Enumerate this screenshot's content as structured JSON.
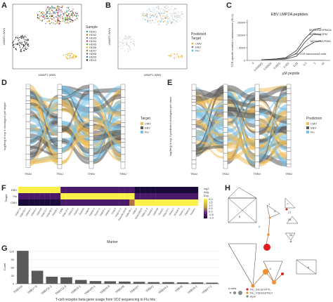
{
  "labels": [
    "A",
    "B",
    "C",
    "D",
    "E",
    "F",
    "G",
    "H"
  ],
  "panelA": {
    "xlabel": "UMAP1-WNN",
    "ylabel": "UMAP2-WNN",
    "legend_title": "Sample",
    "samples": [
      "HD01",
      "HD02",
      "HD03",
      "HD04",
      "HD05",
      "HD06",
      "HD07",
      "HD08",
      "HD09",
      "HD10"
    ],
    "sample_colors": [
      "#1b9e77",
      "#d95f02",
      "#7570b3",
      "#e7298a",
      "#66a61e",
      "#e6ab02",
      "#a6761d",
      "#666666",
      "#3366cc",
      "#222222"
    ]
  },
  "panelB": {
    "xlabel": "UMAP1-WNN",
    "ylabel": "UMAP2-WNN",
    "legend_title": "Predicted Target",
    "targets": [
      "CMV",
      "EBV",
      "Flu"
    ],
    "target_colors": [
      "#e8b13a",
      "#888888",
      "#56b4e9"
    ]
  },
  "panelC": {
    "title": "EBV LMP2A peptides",
    "ylabel": "TCR-specific relative Luminescence (RLU)",
    "xlabel": "μM peptide",
    "xticks": [
      "0",
      "0.000001",
      "0.00001",
      "0.0001",
      "0.001",
      "0.01",
      "0.1",
      "1",
      "10"
    ],
    "yticks": [
      "0",
      "5000",
      "10000",
      "15000"
    ],
    "series_labels": [
      "MGSLEMVPMGA",
      "MGSLEMVPM",
      "MCSLEMVPMG"
    ],
    "note": "No TCR transduced cells"
  },
  "panelD": {
    "ylabel": "log(freq) in top 3 clonotypes per target",
    "axes": [
      "TRAV",
      "TRAJ",
      "TRBV",
      "TRBJ"
    ],
    "legend_title": "Target",
    "legend": [
      "CMV",
      "EBV",
      "Flu"
    ],
    "colors": [
      "#f0be5a",
      "#5a5a5a",
      "#78c0e6"
    ]
  },
  "panelE": {
    "ylabel": "log(freq) in top 3 predicted clonotypes per class",
    "axes": [
      "TRAV",
      "TRAJ",
      "TRBV",
      "TRBJ"
    ],
    "legend_title": "Prediction",
    "legend": [
      "CMV",
      "EBV",
      "Flu"
    ],
    "colors": [
      "#f0be5a",
      "#5a5a5a",
      "#78c0e6"
    ]
  },
  "panelF": {
    "ylabel": "Target",
    "rows": [
      "EBV",
      "Flu",
      "CMV"
    ],
    "xlabel": "Marker",
    "markers": [
      "TRBV7-9",
      "TRBV20-1",
      "TRBV4-1",
      "TRBV3-1",
      "TRBV28",
      "TRAV12-1",
      "TRAV26-2",
      "TRAV8-1",
      "CD8A",
      "TRAV12-2",
      "TRBV19",
      "TRAV27",
      "TRAV35",
      "TRBV9",
      "TRBV6-5",
      "TRAV1-2",
      "TRBV5-1",
      "TRBV6-1",
      "TRAV3",
      "TRBV11-2",
      "TRAV38-2DV8",
      "TRBV29-1",
      "TRBV2",
      "TRAV29DV5",
      "TRBV12-3",
      "TRAV9-2",
      "TRBV30",
      "TRAV21",
      "TRAV13-1",
      "TRAV17",
      "TRAV8-3",
      "TRAV1-1",
      "TRBV18",
      "TRAV41"
    ],
    "legend_title": "log2 Avg. Exp.",
    "legend_ticks": [
      "2.0",
      "1.5",
      "1.0",
      "0.5",
      "0.0",
      "-0.5",
      "-1.0"
    ]
  },
  "panelG": {
    "ylabel": "Count",
    "yticks": [
      "0",
      "30",
      "60",
      "90",
      "120"
    ],
    "xlabel": "T-cell receptor beta gene usage from VDJ sequencing in Flu hits",
    "chart_data": {
      "type": "bar",
      "categories": [
        "TRBV19",
        "TRBV7-9",
        "TRBV11-2",
        "TRBV12-3",
        "TRBV5-1",
        "TRBV20-1",
        "TRBV6-5",
        "TRBV28",
        "TRBV27",
        "TRBV2",
        "TRBV4-1",
        "TRBV9",
        "TRBV6-1",
        "TRBV7-2"
      ],
      "values": [
        122,
        48,
        26,
        24,
        14,
        10,
        9,
        8,
        7,
        6,
        6,
        5,
        5,
        4
      ],
      "ylabel": "Count",
      "xlabel": "T-cell receptor beta gene usage from VDJ sequencing in Flu hits",
      "ylim": [
        0,
        130
      ]
    }
  },
  "panelH": {
    "node_labels": [
      "5",
      "4",
      "1",
      "7",
      "27",
      "24",
      "26",
      "2",
      "6",
      "2"
    ],
    "legend_title": "# cells",
    "legend": [
      "Flu_GILGFVFTL",
      "Flu_VSDGGPNLY",
      "Apm"
    ],
    "legend_colors": [
      "#e02020",
      "#f09030",
      "#888888"
    ]
  }
}
